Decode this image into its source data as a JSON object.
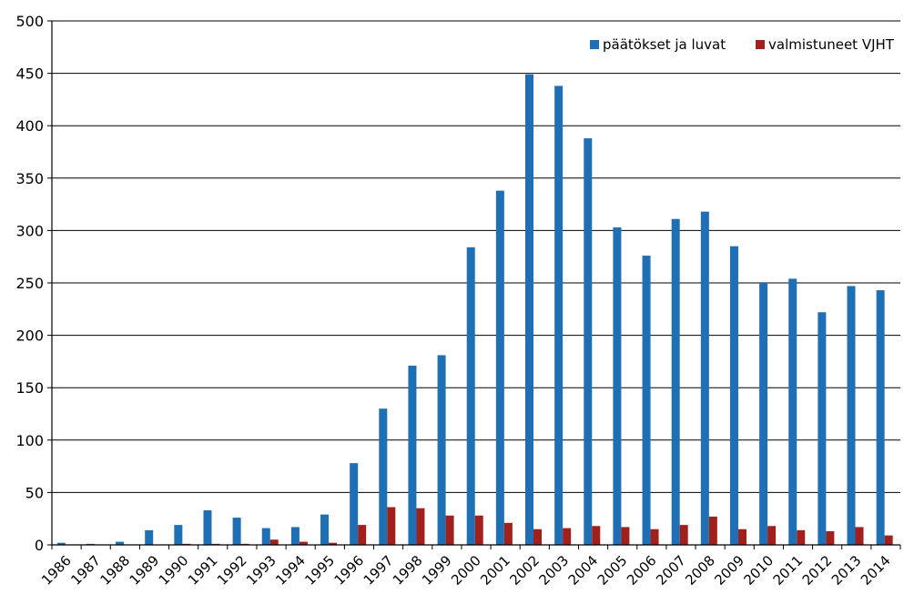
{
  "chart_data": {
    "type": "bar",
    "title": "",
    "xlabel": "",
    "ylabel": "",
    "ylim": [
      0,
      500
    ],
    "yticks": [
      0,
      50,
      100,
      150,
      200,
      250,
      300,
      350,
      400,
      450,
      500
    ],
    "grid": true,
    "legend_position": "top-right",
    "categories": [
      "1986",
      "1987",
      "1988",
      "1989",
      "1990",
      "1991",
      "1992",
      "1993",
      "1994",
      "1995",
      "1996",
      "1997",
      "1998",
      "1999",
      "2000",
      "2001",
      "2002",
      "2003",
      "2004",
      "2005",
      "2006",
      "2007",
      "2008",
      "2009",
      "2010",
      "2011",
      "2012",
      "2013",
      "2014"
    ],
    "series": [
      {
        "name": "päätökset ja luvat",
        "color": "#1F6FB5",
        "values": [
          2,
          1,
          3,
          14,
          19,
          33,
          26,
          16,
          17,
          29,
          78,
          130,
          171,
          181,
          284,
          338,
          449,
          438,
          388,
          303,
          276,
          311,
          318,
          285,
          250,
          254,
          222,
          247,
          243
        ]
      },
      {
        "name": "valmistuneet VJHT",
        "color": "#A0201C",
        "values": [
          0,
          0,
          0,
          0,
          1,
          1,
          1,
          5,
          3,
          2,
          19,
          36,
          35,
          28,
          28,
          21,
          15,
          16,
          18,
          17,
          15,
          19,
          27,
          15,
          18,
          14,
          13,
          17,
          9
        ]
      }
    ]
  }
}
